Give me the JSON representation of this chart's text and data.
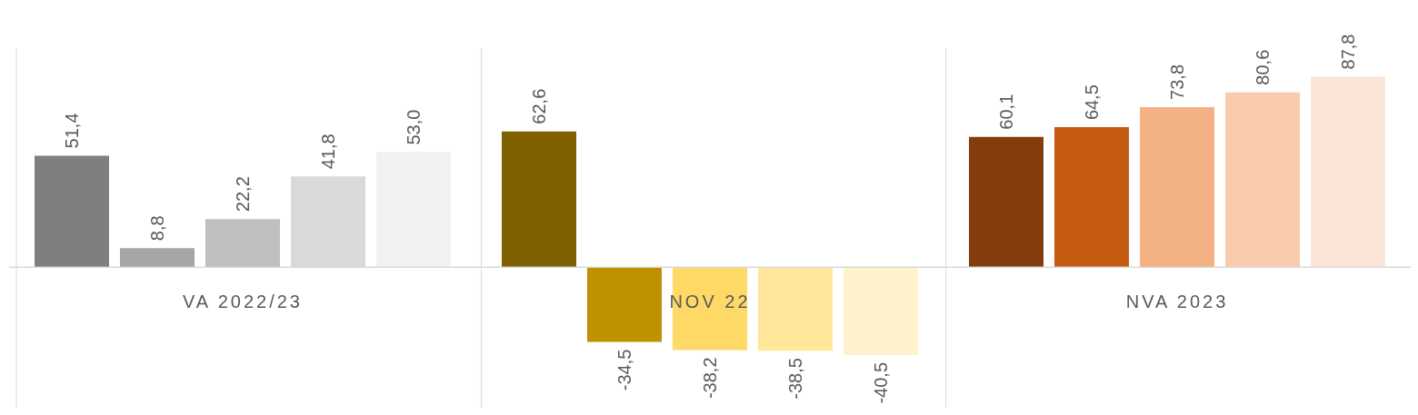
{
  "chart_data": {
    "type": "bar",
    "categories": [
      "VA 2022/23",
      "NOV 22",
      "NVA 2023"
    ],
    "grid": "x",
    "series": [
      {
        "colors": [
          "#7f7f7f",
          "#7f6000",
          "#843c0c"
        ],
        "values": [
          51.4,
          62.6,
          60.1
        ],
        "value_labels": [
          "51,4",
          "62,6",
          "60,1"
        ]
      },
      {
        "colors": [
          "#a5a5a5",
          "#bf9000",
          "#c55a11"
        ],
        "values": [
          8.8,
          -34.5,
          64.5
        ],
        "value_labels": [
          "8,8",
          "-34,5",
          "64,5"
        ]
      },
      {
        "colors": [
          "#bfbfbf",
          "#ffd966",
          "#f4b183"
        ],
        "values": [
          22.2,
          -38.2,
          73.8
        ],
        "value_labels": [
          "22,2",
          "-38,2",
          "73,8"
        ]
      },
      {
        "colors": [
          "#d9d9d9",
          "#ffe699",
          "#f8cbad"
        ],
        "values": [
          41.8,
          -38.5,
          80.6
        ],
        "value_labels": [
          "41,8",
          "-38,5",
          "80,6"
        ]
      },
      {
        "colors": [
          "#f2f2f2",
          "#fff2cc",
          "#fbe5d6"
        ],
        "values": [
          53.0,
          -40.5,
          87.8
        ],
        "value_labels": [
          "53,0",
          "-40,5",
          "87,8"
        ]
      }
    ]
  }
}
